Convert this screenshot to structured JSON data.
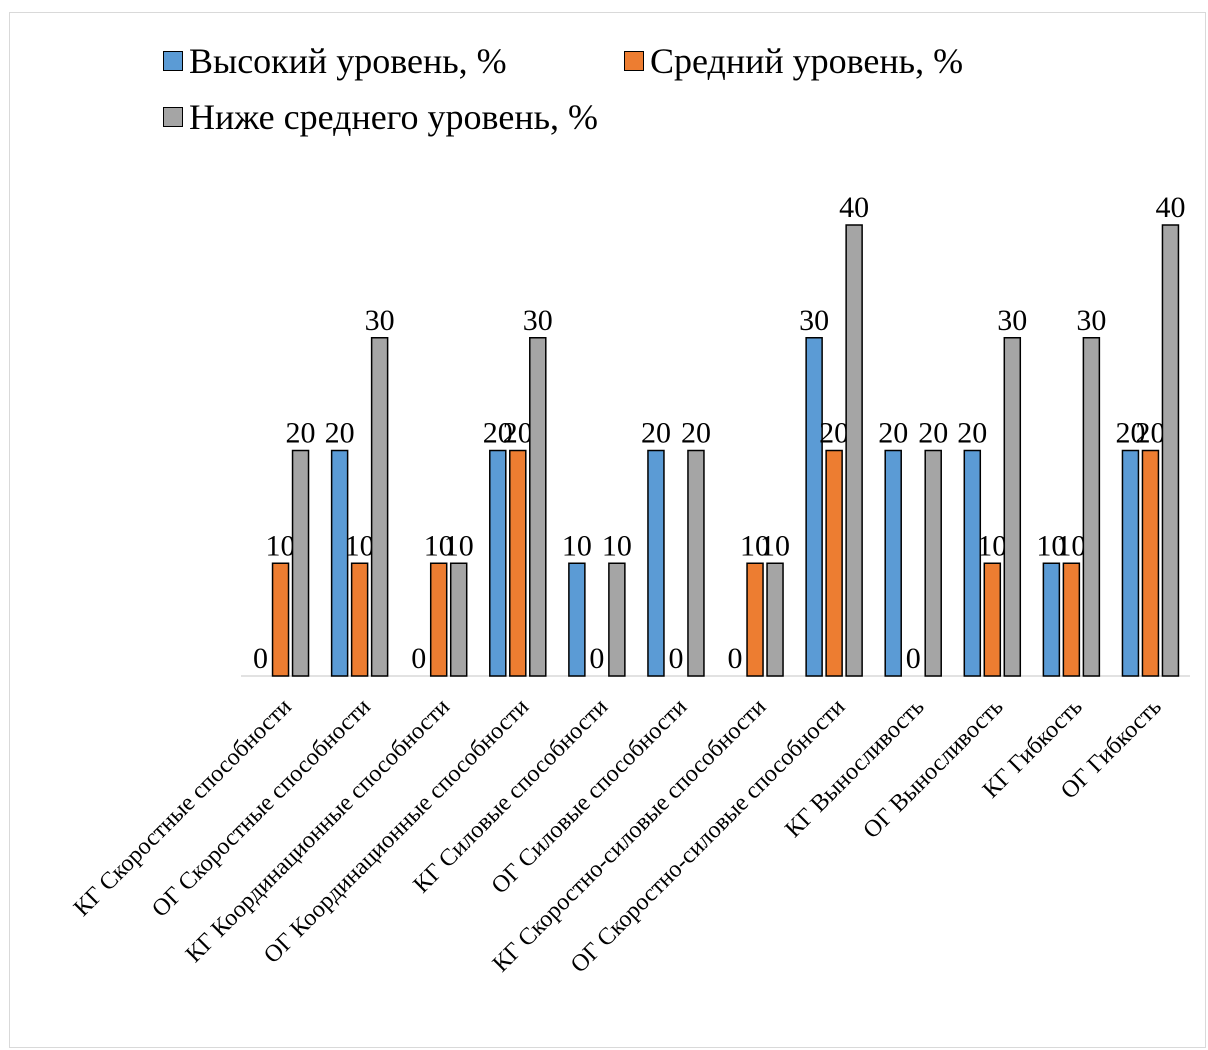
{
  "chart_data": {
    "type": "bar",
    "categories": [
      "КГ Скоростные способности",
      "ОГ Скоростные способности",
      "КГ Координационные способности",
      "ОГ Координационные способности",
      "КГ Силовые способности",
      "ОГ Силовые способности",
      "КГ Скоростно-силовые способности",
      "ОГ Скоростно-силовые способности",
      "КГ Выносливость",
      "ОГ Выносливость",
      "КГ Гибкость",
      "ОГ Гибкость"
    ],
    "series": [
      {
        "name": "Высокий уровень, %",
        "color": "#5b9bd5",
        "values": [
          0,
          20,
          0,
          20,
          10,
          20,
          0,
          30,
          20,
          20,
          10,
          20
        ]
      },
      {
        "name": "Средний уровень, %",
        "color": "#ed7d31",
        "values": [
          10,
          10,
          10,
          20,
          0,
          0,
          10,
          20,
          0,
          10,
          10,
          20
        ]
      },
      {
        "name": "Ниже среднего уровень, %",
        "color": "#a5a5a5",
        "values": [
          20,
          30,
          10,
          30,
          10,
          20,
          10,
          40,
          20,
          30,
          30,
          40
        ]
      }
    ],
    "ylim": [
      0,
      40
    ],
    "grid": false,
    "legend_position": "top",
    "data_labels": true
  }
}
